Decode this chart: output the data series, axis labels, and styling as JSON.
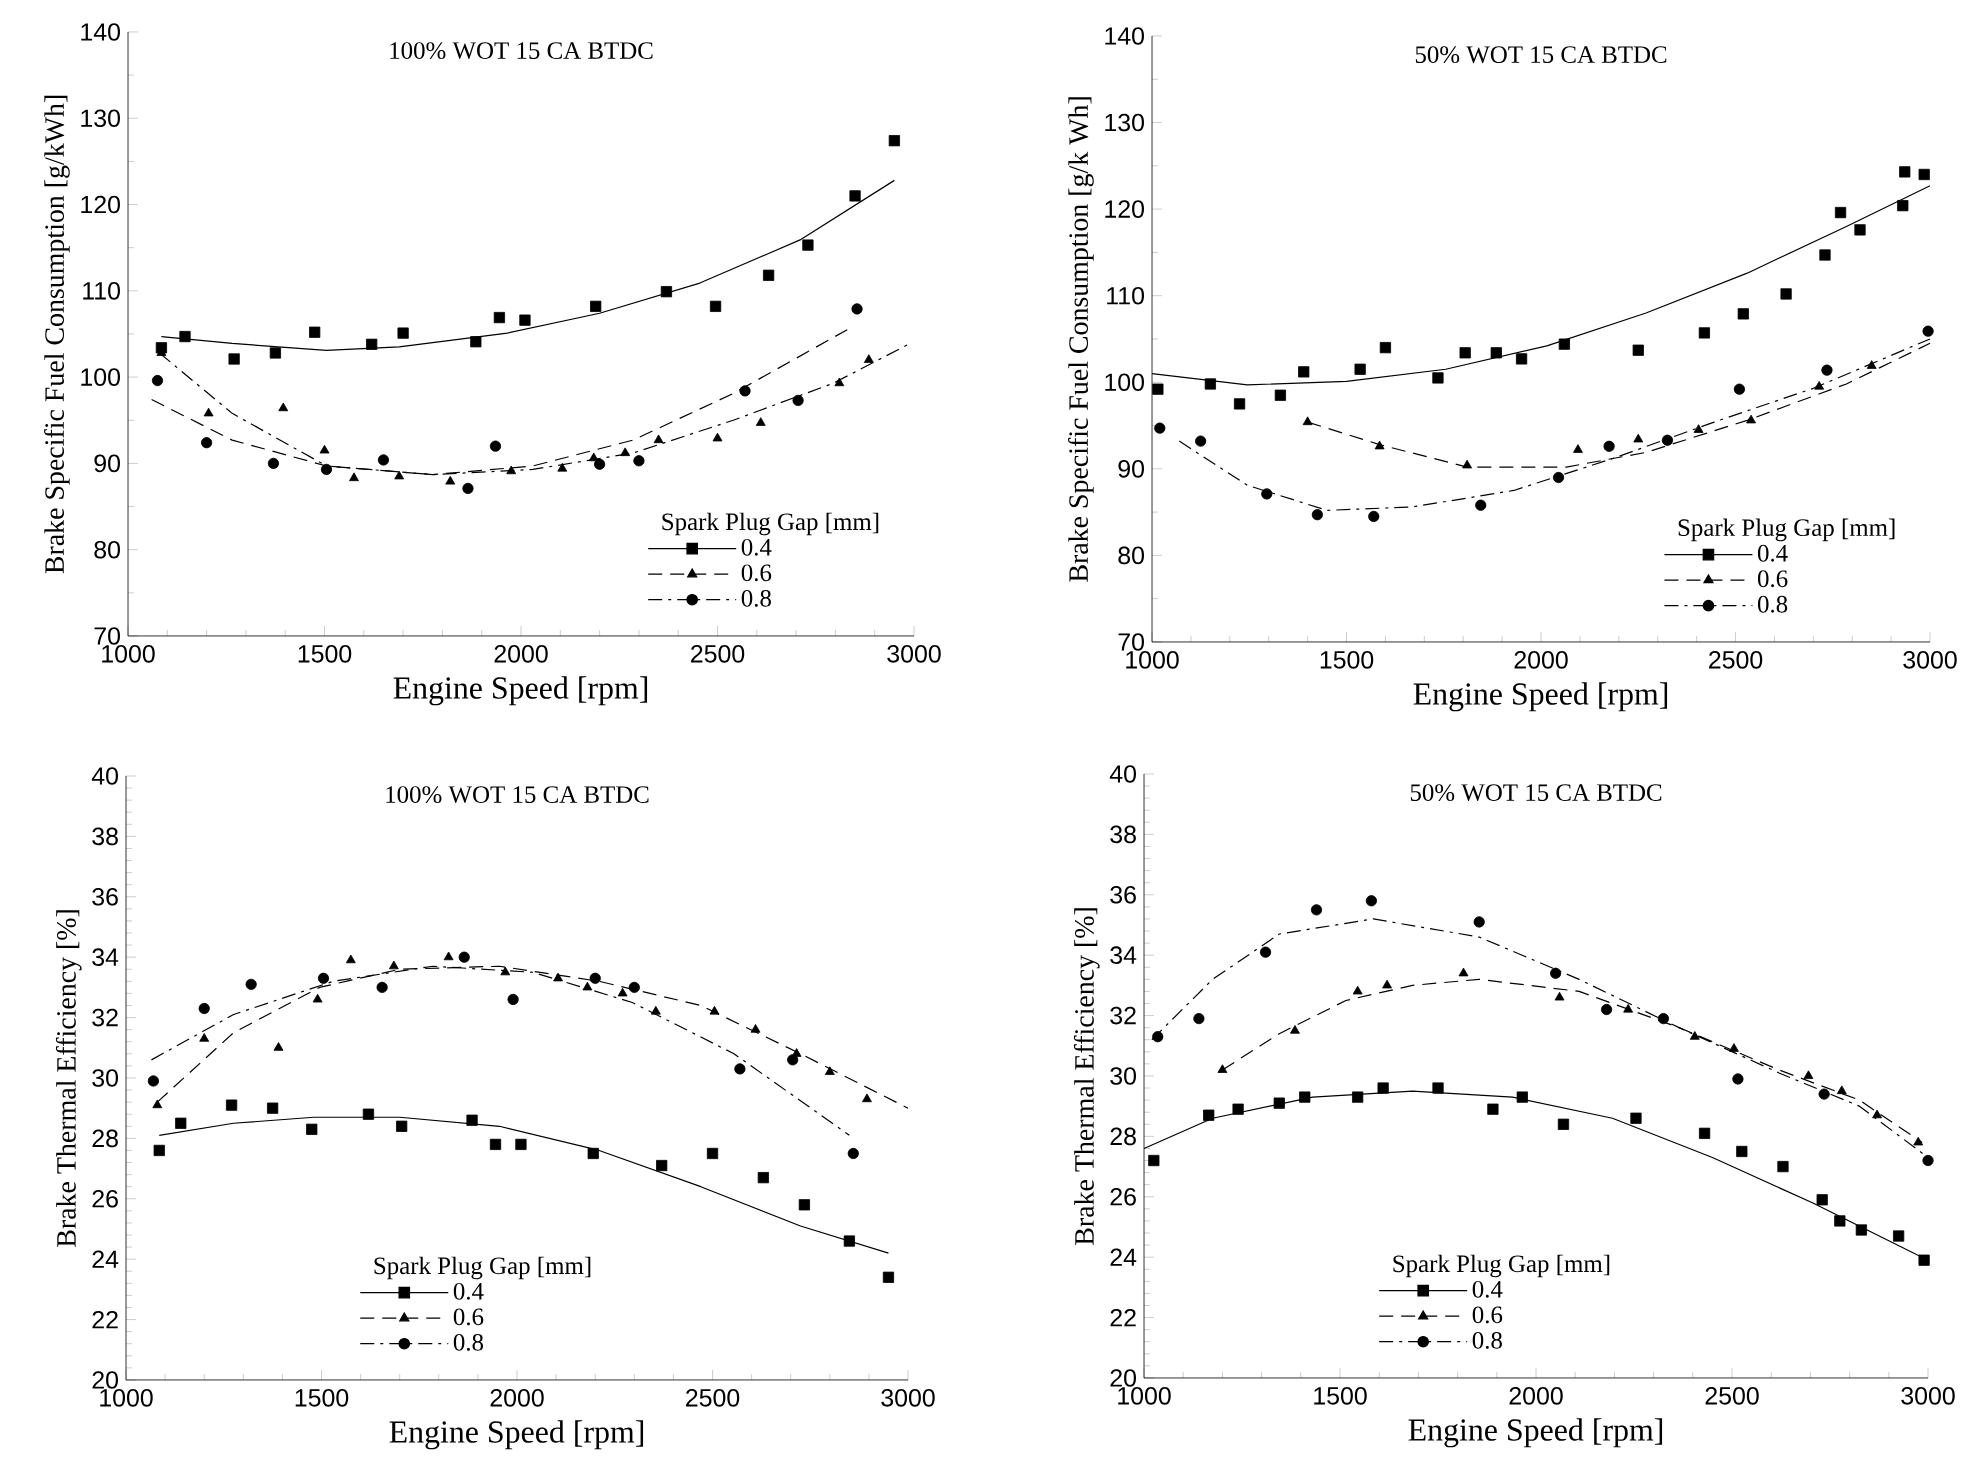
{
  "chart_data": [
    {
      "type": "scatter",
      "title": "100% WOT 15 CA BTDC",
      "xlabel": "Engine Speed [rpm]",
      "ylabel": "Brake Specific Fuel Consumption [g/kWh]",
      "legend_title": "Spark Plug Gap [mm]",
      "legend": "bottom right",
      "xlim": [
        1000,
        3000
      ],
      "ylim": [
        70,
        140
      ],
      "xticks": [
        1000,
        1500,
        2000,
        2500,
        3000
      ],
      "yticks": [
        70,
        80,
        90,
        100,
        110,
        120,
        130,
        140
      ],
      "series": [
        {
          "name": "0.4",
          "type": "scatter",
          "marker": "square",
          "line_style": "solid",
          "color": "#000000",
          "x": [
            1085,
            1145,
            1270,
            1375,
            1475,
            1620,
            1700,
            1885,
            1945,
            2010,
            2190,
            2370,
            2495,
            2630,
            2730,
            2850,
            2950
          ],
          "values": [
            103.4,
            104.7,
            102.1,
            102.8,
            105.2,
            103.8,
            105.1,
            104.1,
            106.9,
            106.6,
            108.2,
            109.9,
            108.2,
            111.8,
            115.3,
            121.0,
            127.4
          ]
        },
        {
          "name": "0.6",
          "type": "scatter",
          "marker": "triangle",
          "line_style": "dashed",
          "color": "#000000",
          "x": [
            1085,
            1205,
            1395,
            1500,
            1575,
            1690,
            1820,
            1975,
            2105,
            2185,
            2265,
            2350,
            2500,
            2610,
            2810,
            2885
          ],
          "values": [
            102.8,
            95.8,
            96.4,
            91.5,
            88.3,
            88.5,
            87.9,
            89.1,
            89.4,
            90.6,
            91.2,
            92.7,
            92.9,
            94.7,
            99.3,
            102.0
          ]
        },
        {
          "name": "0.8",
          "type": "scatter",
          "marker": "circle",
          "line_style": "dashdot",
          "color": "#000000",
          "x": [
            1075,
            1200,
            1370,
            1505,
            1650,
            1865,
            1935,
            2200,
            2300,
            2570,
            2705,
            2855
          ],
          "values": [
            99.6,
            92.4,
            90.0,
            89.3,
            90.4,
            87.1,
            92.0,
            89.9,
            90.3,
            98.4,
            97.3,
            107.9
          ]
        },
        {
          "type": "line",
          "line_style": "solid",
          "color": "#000000",
          "x": [
            1085,
            1265,
            1505,
            1690,
            1965,
            2200,
            2455,
            2710,
            2950
          ],
          "values": [
            104.7,
            103.9,
            103.1,
            103.5,
            105.1,
            107.4,
            110.9,
            115.9,
            122.8
          ]
        },
        {
          "type": "line",
          "line_style": "dashed",
          "color": "#000000",
          "x": [
            1060,
            1265,
            1505,
            1775,
            2030,
            2285,
            2540,
            2830
          ],
          "values": [
            97.4,
            92.7,
            89.7,
            88.7,
            89.7,
            92.7,
            98.1,
            105.5
          ]
        },
        {
          "type": "line",
          "line_style": "dashdot",
          "color": "#000000",
          "x": [
            1080,
            1265,
            1505,
            1775,
            2030,
            2285,
            2540,
            2795,
            2990
          ],
          "values": [
            102.8,
            95.8,
            89.7,
            88.7,
            89.3,
            91.2,
            95.0,
            99.3,
            103.9
          ]
        }
      ]
    },
    {
      "type": "scatter",
      "title": "50% WOT 15 CA BTDC",
      "xlabel": "Engine Speed [rpm]",
      "ylabel": "Brake Specific Fuel Consumption [g/k Wh]",
      "legend_title": "Spark Plug Gap [mm]",
      "legend": "bottom right",
      "xlim": [
        1000,
        3000
      ],
      "ylim": [
        70,
        140
      ],
      "xticks": [
        1000,
        1500,
        2000,
        2500,
        3000
      ],
      "yticks": [
        70,
        80,
        90,
        100,
        110,
        120,
        130,
        140
      ],
      "series": [
        {
          "name": "0.4",
          "type": "scatter",
          "marker": "square",
          "line_style": "solid",
          "color": "#000000",
          "x": [
            1015,
            1150,
            1225,
            1330,
            1390,
            1535,
            1600,
            1735,
            1805,
            1885,
            1950,
            2060,
            2250,
            2420,
            2520,
            2630,
            2730,
            2770,
            2820,
            2930,
            2935,
            2985
          ],
          "values": [
            99.2,
            99.8,
            97.5,
            98.5,
            101.2,
            101.5,
            104.0,
            100.5,
            103.4,
            103.4,
            102.7,
            104.4,
            103.7,
            105.7,
            107.9,
            110.2,
            114.7,
            119.6,
            117.6,
            120.4,
            124.3,
            124.0
          ]
        },
        {
          "name": "0.6",
          "type": "scatter",
          "marker": "triangle",
          "line_style": "dashed",
          "color": "#000000",
          "x": [
            1400,
            1585,
            1810,
            2095,
            2250,
            2405,
            2540,
            2715,
            2850
          ],
          "values": [
            95.4,
            92.6,
            90.4,
            92.2,
            93.4,
            94.5,
            95.6,
            99.5,
            101.9
          ]
        },
        {
          "name": "0.8",
          "type": "scatter",
          "marker": "circle",
          "line_style": "dashdot",
          "color": "#000000",
          "x": [
            1020,
            1125,
            1295,
            1425,
            1570,
            1845,
            2045,
            2175,
            2325,
            2510,
            2735,
            2995
          ],
          "values": [
            94.7,
            93.2,
            87.1,
            84.7,
            84.5,
            85.8,
            89.0,
            92.6,
            93.3,
            99.2,
            101.4,
            105.9
          ]
        },
        {
          "type": "line",
          "line_style": "solid",
          "color": "#000000",
          "x": [
            1000,
            1245,
            1500,
            1755,
            2015,
            2270,
            2530,
            2785,
            3000
          ],
          "values": [
            101.0,
            99.7,
            100.1,
            101.5,
            104.2,
            108.0,
            112.6,
            118.0,
            122.7
          ]
        },
        {
          "type": "line",
          "line_style": "dashed",
          "color": "#000000",
          "x": [
            1400,
            1585,
            1810,
            2065,
            2270,
            2530,
            2785,
            3000
          ],
          "values": [
            95.4,
            92.8,
            90.2,
            90.2,
            91.9,
            95.6,
            99.8,
            104.5
          ]
        },
        {
          "type": "line",
          "line_style": "dashdot",
          "color": "#000000",
          "x": [
            1070,
            1245,
            1450,
            1670,
            1930,
            2185,
            2445,
            2700,
            3000
          ],
          "values": [
            93.2,
            88.1,
            85.2,
            85.6,
            87.5,
            91.2,
            95.4,
            99.3,
            105.0
          ]
        }
      ]
    },
    {
      "type": "scatter",
      "title": "100% WOT 15 CA BTDC",
      "xlabel": "Engine Speed [rpm]",
      "ylabel": "Brake Thermal Efficiency [%]",
      "legend_title": "Spark Plug Gap [mm]",
      "legend": "bottom",
      "xlim": [
        1000,
        3000
      ],
      "ylim": [
        20,
        40
      ],
      "xticks": [
        1000,
        1500,
        2000,
        2500,
        3000
      ],
      "yticks": [
        20,
        22,
        24,
        26,
        28,
        30,
        32,
        34,
        36,
        38,
        40
      ],
      "series": [
        {
          "name": "0.4",
          "type": "scatter",
          "marker": "square",
          "line_style": "solid",
          "color": "#000000",
          "x": [
            1085,
            1140,
            1270,
            1375,
            1475,
            1620,
            1705,
            1885,
            1945,
            2010,
            2195,
            2370,
            2500,
            2630,
            2735,
            2850,
            2950
          ],
          "values": [
            27.6,
            28.5,
            29.1,
            29.0,
            28.3,
            28.8,
            28.4,
            28.6,
            27.8,
            27.8,
            27.5,
            27.1,
            27.5,
            26.7,
            25.8,
            24.6,
            23.4
          ]
        },
        {
          "name": "0.6",
          "type": "scatter",
          "marker": "triangle",
          "line_style": "dashed",
          "color": "#000000",
          "x": [
            1080,
            1200,
            1390,
            1490,
            1575,
            1685,
            1825,
            1970,
            2105,
            2180,
            2270,
            2355,
            2505,
            2610,
            2715,
            2800,
            2895
          ],
          "values": [
            29.1,
            31.3,
            31.0,
            32.6,
            33.9,
            33.7,
            34.0,
            33.5,
            33.3,
            33.0,
            32.8,
            32.2,
            32.2,
            31.6,
            30.8,
            30.2,
            29.3
          ]
        },
        {
          "name": "0.8",
          "type": "scatter",
          "marker": "circle",
          "line_style": "dashdot",
          "color": "#000000",
          "x": [
            1070,
            1200,
            1320,
            1505,
            1655,
            1865,
            1990,
            2200,
            2300,
            2570,
            2705,
            2860
          ],
          "values": [
            29.9,
            32.3,
            33.1,
            33.3,
            33.0,
            34.0,
            32.6,
            33.3,
            33.0,
            30.3,
            30.6,
            27.5
          ]
        },
        {
          "type": "line",
          "line_style": "solid",
          "color": "#000000",
          "x": [
            1085,
            1275,
            1480,
            1700,
            1955,
            2210,
            2470,
            2725,
            2950
          ],
          "values": [
            28.1,
            28.5,
            28.7,
            28.7,
            28.4,
            27.6,
            26.4,
            25.1,
            24.2
          ]
        },
        {
          "type": "line",
          "line_style": "dashed",
          "color": "#000000",
          "x": [
            1080,
            1275,
            1495,
            1700,
            1955,
            2210,
            2470,
            2725,
            3000
          ],
          "values": [
            29.2,
            31.5,
            33.0,
            33.6,
            33.7,
            33.2,
            32.4,
            30.8,
            29.0
          ]
        },
        {
          "type": "line",
          "line_style": "dashdot",
          "color": "#000000",
          "x": [
            1065,
            1275,
            1530,
            1785,
            2040,
            2295,
            2555,
            2850
          ],
          "values": [
            30.6,
            32.1,
            33.2,
            33.7,
            33.5,
            32.5,
            30.8,
            28.1
          ]
        }
      ]
    },
    {
      "type": "scatter",
      "title": "50% WOT 15 CA BTDC",
      "xlabel": "Engine Speed [rpm]",
      "ylabel": "Brake Thermal Efficiency [%]",
      "legend_title": "Spark Plug Gap [mm]",
      "legend": "bottom",
      "xlim": [
        1000,
        3000
      ],
      "ylim": [
        20,
        40
      ],
      "xticks": [
        1000,
        1500,
        2000,
        2500,
        3000
      ],
      "yticks": [
        20,
        22,
        24,
        26,
        28,
        30,
        32,
        34,
        36,
        38,
        40
      ],
      "series": [
        {
          "name": "0.4",
          "type": "scatter",
          "marker": "square",
          "line_style": "solid",
          "color": "#000000",
          "x": [
            1025,
            1165,
            1240,
            1345,
            1410,
            1545,
            1610,
            1750,
            1890,
            1965,
            2070,
            2255,
            2430,
            2525,
            2630,
            2730,
            2775,
            2830,
            2925,
            2990
          ],
          "values": [
            27.2,
            28.7,
            28.9,
            29.1,
            29.3,
            29.3,
            29.6,
            29.6,
            28.9,
            29.3,
            28.4,
            28.6,
            28.1,
            27.5,
            27.0,
            25.9,
            25.2,
            24.9,
            24.7,
            23.9
          ]
        },
        {
          "name": "0.6",
          "type": "scatter",
          "marker": "triangle",
          "line_style": "dashed",
          "color": "#000000",
          "x": [
            1200,
            1385,
            1545,
            1620,
            1815,
            2060,
            2235,
            2405,
            2505,
            2695,
            2780,
            2870,
            2975
          ],
          "values": [
            30.2,
            31.5,
            32.8,
            33.0,
            33.4,
            32.6,
            32.2,
            31.3,
            30.9,
            30.0,
            29.5,
            28.7,
            27.8
          ]
        },
        {
          "name": "0.8",
          "type": "scatter",
          "marker": "circle",
          "line_style": "dashdot",
          "color": "#000000",
          "x": [
            1035,
            1140,
            1310,
            1440,
            1580,
            1855,
            2050,
            2180,
            2325,
            2515,
            2735,
            3000
          ],
          "values": [
            31.3,
            31.9,
            34.1,
            35.5,
            35.8,
            35.1,
            33.4,
            32.2,
            31.9,
            29.9,
            29.4,
            27.2
          ]
        },
        {
          "type": "line",
          "line_style": "solid",
          "color": "#000000",
          "x": [
            1000,
            1175,
            1430,
            1685,
            1940,
            2195,
            2450,
            2705,
            3000
          ],
          "values": [
            27.6,
            28.6,
            29.3,
            29.5,
            29.3,
            28.6,
            27.3,
            25.8,
            23.9
          ]
        },
        {
          "type": "line",
          "line_style": "dashed",
          "color": "#000000",
          "x": [
            1200,
            1345,
            1515,
            1685,
            1855,
            2110,
            2365,
            2620,
            2825,
            2985
          ],
          "values": [
            30.2,
            31.4,
            32.5,
            33.0,
            33.2,
            32.8,
            31.6,
            30.2,
            29.2,
            27.8
          ]
        },
        {
          "type": "line",
          "line_style": "dashdot",
          "color": "#000000",
          "x": [
            1020,
            1175,
            1345,
            1585,
            1855,
            2110,
            2365,
            2620,
            2825,
            3000
          ],
          "values": [
            31.2,
            33.2,
            34.7,
            35.2,
            34.6,
            33.2,
            31.6,
            30.1,
            29.0,
            27.3
          ]
        }
      ]
    }
  ]
}
